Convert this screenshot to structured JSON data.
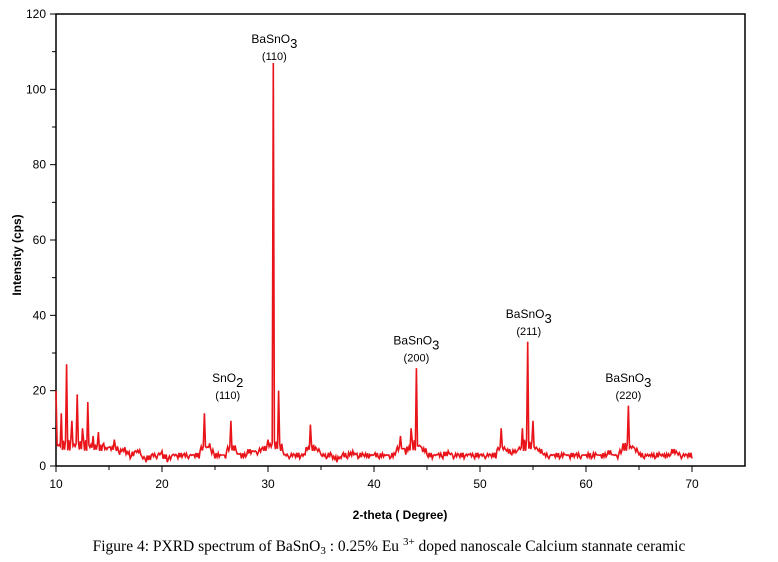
{
  "chart_data": {
    "type": "line",
    "title": "",
    "xlabel": "2-theta ( Degree)",
    "ylabel": "Intensity (cps)",
    "xlim": [
      10,
      75
    ],
    "ylim": [
      0,
      120
    ],
    "xticks": [
      10,
      20,
      30,
      40,
      50,
      60,
      70
    ],
    "yticks": [
      0,
      20,
      40,
      60,
      80,
      100,
      120
    ],
    "grid": false,
    "series": [
      {
        "name": "PXRD",
        "color": "#e8141a",
        "x_start": 10,
        "x_step": 0.5,
        "values": [
          20,
          14,
          27,
          12,
          19,
          10,
          17,
          8,
          9,
          6,
          5,
          7,
          3,
          5,
          2,
          4,
          3,
          1,
          3,
          2,
          4,
          1,
          3,
          2,
          3,
          2,
          3,
          2,
          14,
          6,
          2,
          3,
          2,
          12,
          4,
          2,
          3,
          4,
          3,
          5,
          7,
          107,
          20,
          3,
          2,
          3,
          2,
          3,
          11,
          5,
          3,
          2,
          3,
          1,
          3,
          2,
          4,
          2,
          3,
          2,
          3,
          2,
          3,
          2,
          3,
          8,
          3,
          10,
          26,
          5,
          3,
          2,
          3,
          2,
          4,
          2,
          3,
          2,
          3,
          2,
          3,
          2,
          3,
          2,
          10,
          4,
          3,
          4,
          10,
          33,
          12,
          4,
          3,
          2,
          3,
          2,
          3,
          2,
          3,
          2,
          3,
          2,
          3,
          2,
          3,
          3,
          2,
          6,
          16,
          5,
          3,
          2,
          3,
          2,
          3,
          2,
          3,
          4,
          2,
          3,
          2
        ]
      }
    ],
    "annotations": [
      {
        "compound": "BaSnO",
        "sub": "3",
        "plane": "(110)",
        "x": 30.6,
        "y": 108
      },
      {
        "compound": "SnO",
        "sub": "2",
        "plane": "(110)",
        "x": 26.2,
        "y": 18
      },
      {
        "compound": "BaSnO",
        "sub": "3",
        "plane": "(200)",
        "x": 44,
        "y": 28
      },
      {
        "compound": "BaSnO",
        "sub": "3",
        "plane": "(211)",
        "x": 54.6,
        "y": 35
      },
      {
        "compound": "BaSnO",
        "sub": "3",
        "plane": "(220)",
        "x": 64,
        "y": 18
      }
    ]
  },
  "caption": {
    "prefix": "Figure 4: PXRD spectrum of BaSnO",
    "sub": "3",
    "middle": " : 0.25% Eu ",
    "sup": "3+",
    "suffix": " doped nanoscale Calcium stannate ceramic"
  }
}
